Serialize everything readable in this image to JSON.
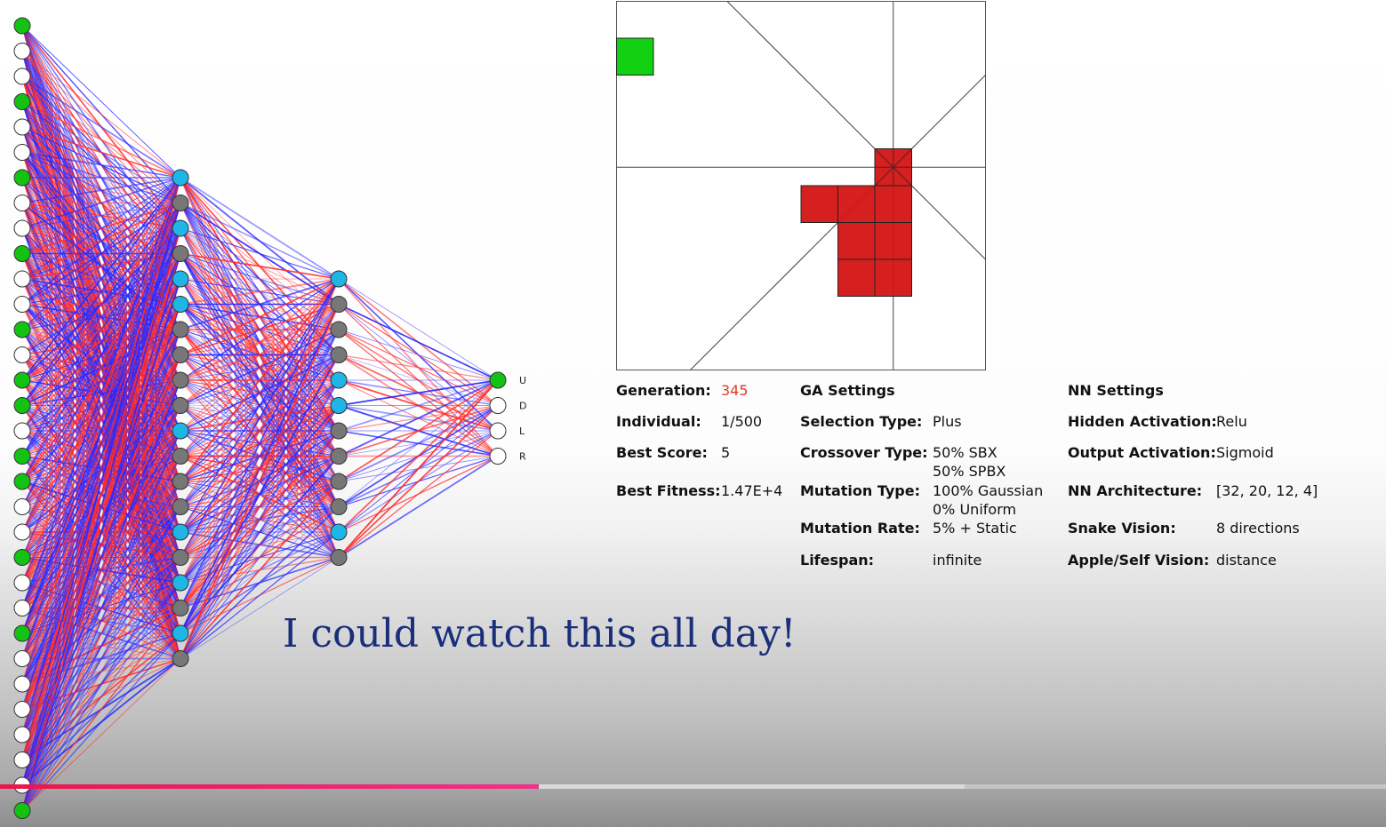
{
  "network": {
    "input_labels_visible": false,
    "output_labels": [
      "U",
      "D",
      "L",
      "R"
    ],
    "input_activations": [
      1,
      0,
      0,
      1,
      0,
      0,
      1,
      0,
      0,
      1,
      0,
      0,
      1,
      0,
      1,
      1,
      0,
      1,
      1,
      0,
      0,
      1,
      0,
      0,
      1,
      0,
      0,
      0,
      0,
      0,
      0,
      1
    ],
    "hidden1_activations": [
      1,
      0,
      1,
      0,
      1,
      1,
      0,
      0,
      0,
      0,
      1,
      0,
      0,
      0,
      1,
      0,
      1,
      0,
      1,
      0
    ],
    "hidden2_activations": [
      1,
      0,
      0,
      0,
      1,
      1,
      0,
      0,
      0,
      0,
      1,
      0
    ],
    "output_activations": [
      1,
      0,
      0,
      0
    ],
    "colors": {
      "active_input": "#13c213",
      "active_hidden": "#1fb6e6",
      "inactive_hidden": "#777777",
      "inactive": "#ffffff",
      "positive_weight": "#ff2a2a",
      "negative_weight": "#2a2aff"
    }
  },
  "game": {
    "grid_size": 10,
    "apple": [
      0,
      1
    ],
    "snake": [
      [
        7,
        4
      ],
      [
        7,
        5
      ],
      [
        6,
        5
      ],
      [
        5,
        5
      ],
      [
        6,
        6
      ],
      [
        7,
        6
      ],
      [
        6,
        7
      ],
      [
        7,
        7
      ]
    ],
    "colors": {
      "apple": "#12d012",
      "snake": "#d41414"
    }
  },
  "stats": {
    "generation_label": "Generation:",
    "generation_value": "345",
    "individual_label": "Individual:",
    "individual_value": "1/500",
    "best_score_label": "Best Score:",
    "best_score_value": "5",
    "best_fitness_label": "Best Fitness:",
    "best_fitness_value": "1.47E+4"
  },
  "ga_settings": {
    "title": "GA Settings",
    "selection_label": "Selection Type:",
    "selection_value": "Plus",
    "crossover_label": "Crossover Type:",
    "crossover_value_1": "50% SBX",
    "crossover_value_2": "50% SPBX",
    "mutation_type_label": "Mutation Type:",
    "mutation_type_value_1": "100% Gaussian",
    "mutation_type_value_2": "0% Uniform",
    "mutation_rate_label": "Mutation Rate:",
    "mutation_rate_value": "5% + Static",
    "lifespan_label": "Lifespan:",
    "lifespan_value": "infinite"
  },
  "nn_settings": {
    "title": "NN Settings",
    "hidden_activation_label": "Hidden Activation:",
    "hidden_activation_value": "Relu",
    "output_activation_label": "Output Activation:",
    "output_activation_value": "Sigmoid",
    "architecture_label": "NN Architecture:",
    "architecture_value": "[32, 20, 12, 4]",
    "vision_label": "Snake Vision:",
    "vision_value": "8 directions",
    "apple_self_label": "Apple/Self Vision:",
    "apple_self_value": "distance"
  },
  "caption": "I could watch this all day!",
  "video_player": {
    "progress_played": 0.389,
    "progress_buffered": 0.696
  }
}
